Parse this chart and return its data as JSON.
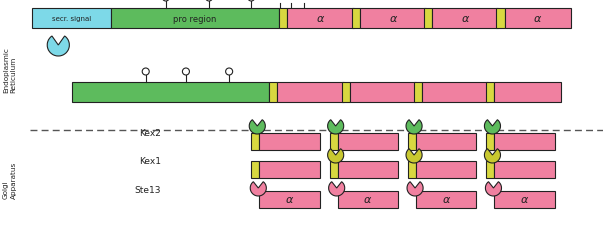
{
  "bg_color": "#ffffff",
  "cyan_color": "#7dd9e8",
  "green_color": "#5dbb5d",
  "pink_color": "#f080a0",
  "yellow_color": "#d8d840",
  "outline_color": "#222222",
  "text_color": "#222222",
  "label_secr": "secr. signal",
  "label_pro": "pro region",
  "label_alpha": "α",
  "label_kex2": "Kex2",
  "label_kex1": "Kex1",
  "label_ste13": "Ste13",
  "label_er": "Endoplasmic\nReticulum",
  "label_golgi": "Golgi\nApparatus",
  "fig_w": 6.03,
  "fig_h": 2.51,
  "dpi": 100
}
